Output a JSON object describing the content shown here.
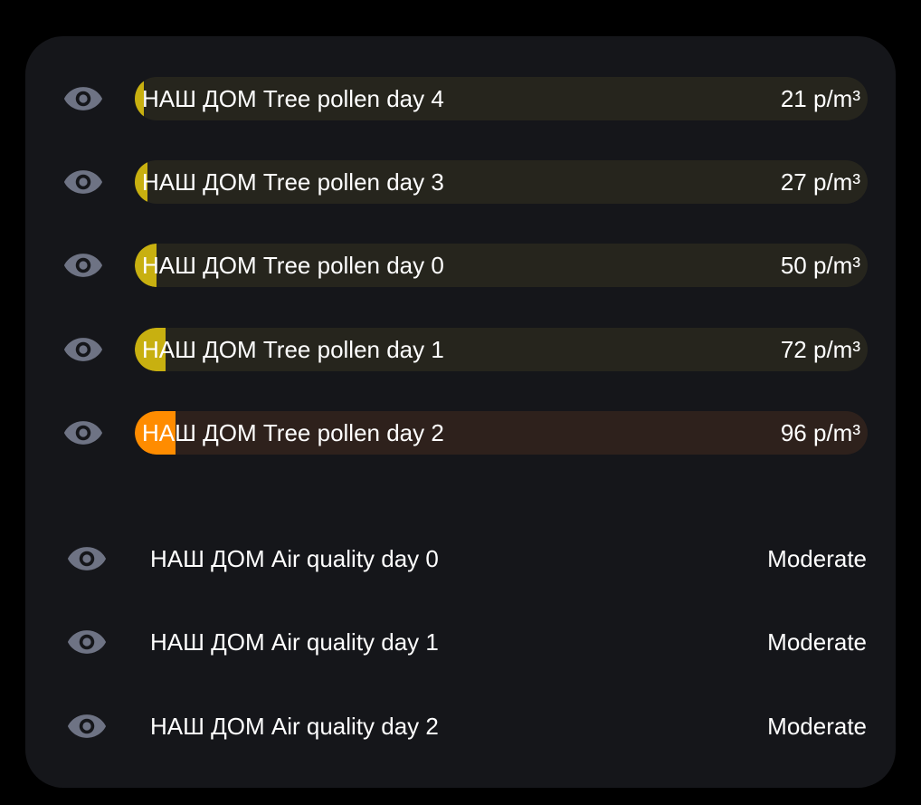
{
  "colors": {
    "eye_icon": "#6e7384",
    "text": "#ffffff",
    "card_bg": "#15161a"
  },
  "pollen": {
    "items": [
      {
        "label": "НАШ ДОМ Tree pollen day 4",
        "value": "21 p/m³",
        "level": 0.01,
        "fill": "#c8b010",
        "track": "#26251d",
        "icon": "eye-icon"
      },
      {
        "label": "НАШ ДОМ Tree pollen day 3",
        "value": "27 p/m³",
        "level": 0.017,
        "fill": "#c8b010",
        "track": "#26251d",
        "icon": "eye-icon"
      },
      {
        "label": "НАШ ДОМ Tree pollen day 0",
        "value": "50 p/m³",
        "level": 0.03,
        "fill": "#c8b010",
        "track": "#26251d",
        "icon": "eye-icon"
      },
      {
        "label": "НАШ ДОМ Tree pollen day 1",
        "value": "72 p/m³",
        "level": 0.042,
        "fill": "#c8b010",
        "track": "#26251d",
        "icon": "eye-icon"
      },
      {
        "label": "НАШ ДОМ Tree pollen day 2",
        "value": "96 p/m³",
        "level": 0.056,
        "fill": "#ff8c00",
        "track": "#2e211c",
        "icon": "eye-icon"
      }
    ]
  },
  "air_quality": {
    "items": [
      {
        "label": "НАШ ДОМ Air quality day 0",
        "value": "Moderate",
        "icon": "eye-icon"
      },
      {
        "label": "НАШ ДОМ Air quality day 1",
        "value": "Moderate",
        "icon": "eye-icon"
      },
      {
        "label": "НАШ ДОМ Air quality day 2",
        "value": "Moderate",
        "icon": "eye-icon"
      }
    ]
  }
}
